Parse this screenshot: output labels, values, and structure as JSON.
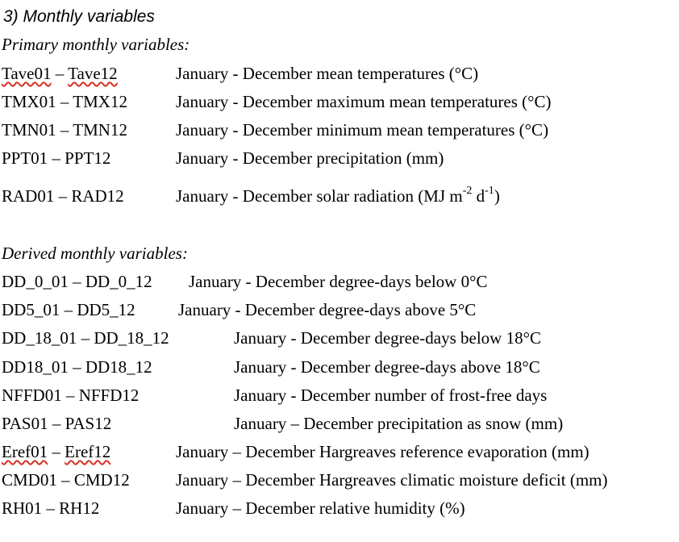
{
  "heading": "3) Monthly variables",
  "primary": {
    "title": "Primary monthly variables:",
    "rows": [
      {
        "code_a": "Tave01",
        "sep": " – ",
        "code_b": "Tave12",
        "desc": "January - December mean temperatures (°C)"
      },
      {
        "code": "TMX01 – TMX12",
        "desc": "January - December maximum mean temperatures (°C)"
      },
      {
        "code": "TMN01 – TMN12",
        "desc": "January - December minimum mean temperatures (°C)"
      },
      {
        "code": "PPT01 – PPT12",
        "desc": "January - December precipitation (mm)"
      },
      {
        "code": "RAD01 – RAD12",
        "desc_pre": "January - December solar radiation (MJ m",
        "sup1": "-2",
        "desc_mid": " d",
        "sup2": "-1",
        "desc_post": ")"
      }
    ]
  },
  "derived": {
    "title": "Derived monthly variables:",
    "rows": [
      {
        "code": "DD_0_01 – DD_0_12",
        "desc": "January - December degree-days below 0°C"
      },
      {
        "code": "DD5_01 – DD5_12",
        "desc": "January - December degree-days above 5°C"
      },
      {
        "code": "DD_18_01 – DD_18_12",
        "desc": "January - December degree-days below 18°C"
      },
      {
        "code": "DD18_01 – DD18_12",
        "desc": "January - December degree-days above 18°C"
      },
      {
        "code": "NFFD01 – NFFD12",
        "desc": "January - December number of frost-free days"
      },
      {
        "code": "PAS01 – PAS12",
        "desc": "January – December precipitation as snow (mm)"
      },
      {
        "code_a": "Eref01",
        "sep": " – ",
        "code_b": "Eref12",
        "desc": "January – December Hargreaves reference evaporation (mm)"
      },
      {
        "code": "CMD01 – CMD12",
        "desc": "January – December Hargreaves climatic moisture deficit (mm)"
      },
      {
        "code": "RH01 – RH12",
        "desc": "January – December relative humidity (%)"
      }
    ]
  }
}
